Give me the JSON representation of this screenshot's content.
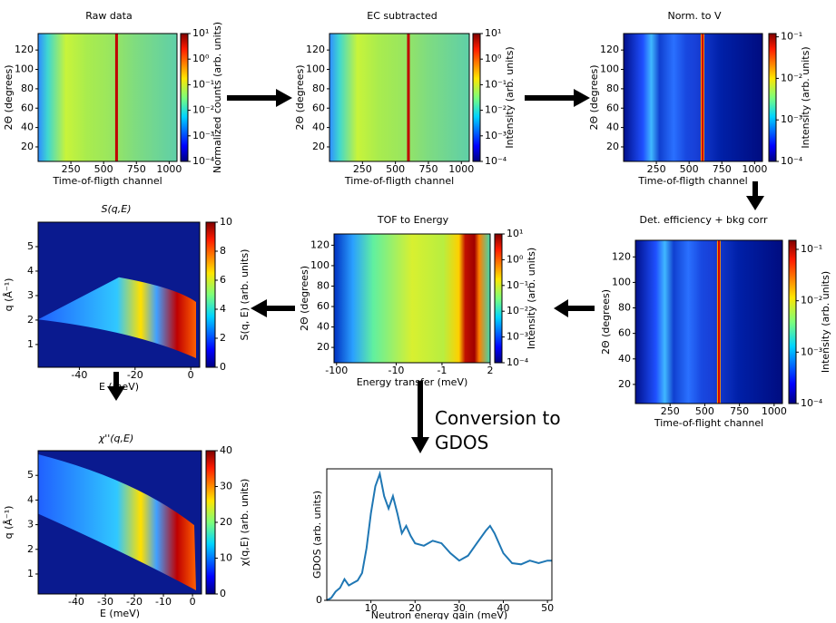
{
  "chart_data": [
    {
      "type": "heatmap",
      "title": "Raw data",
      "xlabel": "Time-of-fligth channel",
      "ylabel": "2Θ (degrees)",
      "xlim": [
        0,
        1060
      ],
      "xticks": [
        250,
        500,
        750,
        1000
      ],
      "ylim": [
        5,
        137
      ],
      "yticks": [
        20,
        40,
        60,
        80,
        100,
        120
      ],
      "colorbar_label": "Normalized counts (arb. units)",
      "cscale": "log",
      "clim": [
        0.0001,
        10
      ],
      "cticks": [
        {
          "value": 10,
          "label": "10¹"
        },
        {
          "value": 1,
          "label": "10⁰"
        },
        {
          "value": 0.1,
          "label": "10⁻¹"
        },
        {
          "value": 0.01,
          "label": "10⁻²"
        },
        {
          "value": 0.001,
          "label": "10⁻³"
        },
        {
          "value": 0.0001,
          "label": "10⁻⁴"
        }
      ]
    },
    {
      "type": "heatmap",
      "title": "EC subtracted",
      "xlabel": "Time-of-fligth channel",
      "ylabel": "2Θ (degrees)",
      "xlim": [
        0,
        1060
      ],
      "xticks": [
        250,
        500,
        750,
        1000
      ],
      "ylim": [
        5,
        137
      ],
      "yticks": [
        20,
        40,
        60,
        80,
        100,
        120
      ],
      "colorbar_label": "Intensity (arb. units)",
      "cscale": "log",
      "clim": [
        0.0001,
        10
      ],
      "cticks": [
        {
          "value": 10,
          "label": "10¹"
        },
        {
          "value": 1,
          "label": "10⁰"
        },
        {
          "value": 0.1,
          "label": "10⁻¹"
        },
        {
          "value": 0.01,
          "label": "10⁻²"
        },
        {
          "value": 0.001,
          "label": "10⁻³"
        },
        {
          "value": 0.0001,
          "label": "10⁻⁴"
        }
      ]
    },
    {
      "type": "heatmap",
      "title": "Norm. to V",
      "xlabel": "Time-of-fligth channel",
      "ylabel": "2Θ (degrees)",
      "xlim": [
        0,
        1060
      ],
      "xticks": [
        250,
        500,
        750,
        1000
      ],
      "ylim": [
        5,
        137
      ],
      "yticks": [
        20,
        40,
        60,
        80,
        100,
        120
      ],
      "colorbar_label": "Intensity (arb. units)",
      "cscale": "log",
      "clim": [
        0.0001,
        0.12
      ],
      "cticks": [
        {
          "value": 0.1,
          "label": "10⁻¹"
        },
        {
          "value": 0.01,
          "label": "10⁻²"
        },
        {
          "value": 0.001,
          "label": "10⁻³"
        },
        {
          "value": 0.0001,
          "label": "10⁻⁴"
        }
      ]
    },
    {
      "type": "heatmap",
      "title": "Det. efficiency + bkg corr",
      "xlabel": "Time-of-flight channel",
      "ylabel": "2Θ (degrees)",
      "xlim": [
        0,
        1060
      ],
      "xticks": [
        250,
        500,
        750,
        1000
      ],
      "ylim": [
        5,
        133
      ],
      "yticks": [
        20,
        40,
        60,
        80,
        100,
        120
      ],
      "colorbar_label": "Intensity (arb. units)",
      "cscale": "log",
      "clim": [
        0.0001,
        0.15
      ],
      "cticks": [
        {
          "value": 0.1,
          "label": "10⁻¹"
        },
        {
          "value": 0.01,
          "label": "10⁻²"
        },
        {
          "value": 0.001,
          "label": "10⁻³"
        },
        {
          "value": 0.0001,
          "label": "10⁻⁴"
        }
      ]
    },
    {
      "type": "heatmap",
      "title": "TOF to Energy",
      "xlabel": "Energy transfer (meV)",
      "ylabel": "2Θ (degrees)",
      "xscale": "symlog",
      "xlim": [
        -110,
        2
      ],
      "xticks": [
        -100,
        -10,
        -1,
        2
      ],
      "ylim": [
        5,
        131
      ],
      "yticks": [
        20,
        40,
        60,
        80,
        100,
        120
      ],
      "colorbar_label": "Intensity (arb. units)",
      "cscale": "log",
      "clim": [
        0.0001,
        10
      ],
      "cticks": [
        {
          "value": 10,
          "label": "10¹"
        },
        {
          "value": 1,
          "label": "10⁰"
        },
        {
          "value": 0.1,
          "label": "10⁻¹"
        },
        {
          "value": 0.01,
          "label": "10⁻²"
        },
        {
          "value": 0.001,
          "label": "10⁻³"
        },
        {
          "value": 0.0001,
          "label": "10⁻⁴"
        }
      ]
    },
    {
      "type": "heatmap",
      "title": "S(q,E)",
      "xlabel": "E (meV)",
      "ylabel": "q (Å⁻¹)",
      "xlim": [
        -54.8,
        3.2
      ],
      "xticks": [
        -40,
        -20,
        0
      ],
      "ylim": [
        0.07,
        6.0
      ],
      "yticks": [
        1,
        2,
        3,
        4,
        5
      ],
      "colorbar_label": "S(q, E) (arb. units)",
      "clim": [
        0,
        10
      ],
      "cticks": [
        0,
        2,
        4,
        6,
        8,
        10
      ]
    },
    {
      "type": "heatmap",
      "title": "χ''(q,E)",
      "xlabel": "E (meV)",
      "ylabel": "q (Å⁻¹)",
      "xlim": [
        -53.1,
        3.1
      ],
      "xticks": [
        -40,
        -30,
        -20,
        -10,
        0
      ],
      "ylim": [
        0.19,
        6.0
      ],
      "yticks": [
        1,
        2,
        3,
        4,
        5
      ],
      "colorbar_label": "χ(q,E) (arb. units)",
      "clim": [
        0,
        40
      ],
      "cticks": [
        0,
        10,
        20,
        30,
        40
      ]
    },
    {
      "type": "line",
      "title": "Conversion to GDOS",
      "xlabel": "Neutron energy gain (meV)",
      "ylabel": "GDOS (arb. units)",
      "xlim": [
        0,
        51
      ],
      "xticks": [
        10,
        20,
        30,
        40,
        50
      ],
      "ylim": [
        0,
        5.3
      ],
      "yticks": [
        0
      ],
      "color": "#1f77b4",
      "x": [
        0,
        1,
        2,
        3,
        4,
        5,
        6,
        7,
        8,
        9,
        10,
        11,
        12,
        13,
        14,
        15,
        16,
        17,
        18,
        19,
        20,
        22,
        24,
        26,
        28,
        30,
        32,
        34,
        36,
        37,
        38,
        40,
        42,
        44,
        46,
        48,
        50,
        51
      ],
      "values": [
        0,
        0.1,
        0.35,
        0.5,
        0.85,
        0.6,
        0.7,
        0.8,
        1.1,
        2.1,
        3.5,
        4.6,
        5.1,
        4.2,
        3.7,
        4.2,
        3.5,
        2.7,
        3.0,
        2.6,
        2.3,
        2.2,
        2.4,
        2.3,
        1.9,
        1.6,
        1.8,
        2.3,
        2.8,
        3.0,
        2.7,
        1.9,
        1.5,
        1.45,
        1.6,
        1.5,
        1.6,
        1.6
      ]
    }
  ]
}
